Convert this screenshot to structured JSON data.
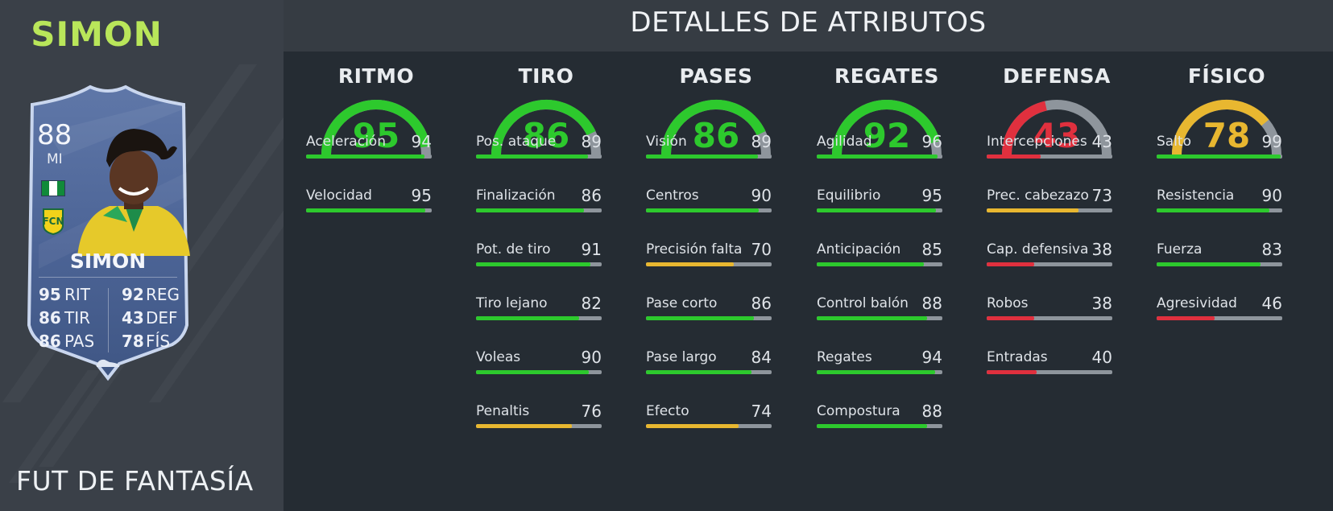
{
  "player": {
    "name_top": "SIMON",
    "promo": "FUT DE FANTASÍA",
    "rating": "88",
    "position": "MI",
    "card_name": "SIMON",
    "card_stats_left": [
      {
        "value": "95",
        "label": "RIT"
      },
      {
        "value": "86",
        "label": "TIR"
      },
      {
        "value": "86",
        "label": "PAS"
      }
    ],
    "card_stats_right": [
      {
        "value": "92",
        "label": "REG"
      },
      {
        "value": "43",
        "label": "DEF"
      },
      {
        "value": "78",
        "label": "FÍS"
      }
    ],
    "flag_icon": "nigeria-flag-icon",
    "club_icon": "club-crest-icon"
  },
  "header": {
    "title": "DETALLES DE ATRIBUTOS"
  },
  "colors": {
    "green": "#2dc92d",
    "red": "#e0303e",
    "yellow": "#e8b730",
    "track": "#8e959c",
    "name_accent": "#b9e65a"
  },
  "categories": [
    {
      "title": "RITMO",
      "value": 95,
      "value_text": "95",
      "attributes": [
        {
          "name": "Aceleración",
          "value": 94,
          "value_text": "94"
        },
        {
          "name": "Velocidad",
          "value": 95,
          "value_text": "95"
        }
      ]
    },
    {
      "title": "TIRO",
      "value": 86,
      "value_text": "86",
      "attributes": [
        {
          "name": "Pos. ataque",
          "value": 89,
          "value_text": "89"
        },
        {
          "name": "Finalización",
          "value": 86,
          "value_text": "86"
        },
        {
          "name": "Pot. de tiro",
          "value": 91,
          "value_text": "91"
        },
        {
          "name": "Tiro lejano",
          "value": 82,
          "value_text": "82"
        },
        {
          "name": "Voleas",
          "value": 90,
          "value_text": "90"
        },
        {
          "name": "Penaltis",
          "value": 76,
          "value_text": "76"
        }
      ]
    },
    {
      "title": "PASES",
      "value": 86,
      "value_text": "86",
      "attributes": [
        {
          "name": "Visión",
          "value": 89,
          "value_text": "89"
        },
        {
          "name": "Centros",
          "value": 90,
          "value_text": "90"
        },
        {
          "name": "Precisión falta",
          "value": 70,
          "value_text": "70"
        },
        {
          "name": "Pase corto",
          "value": 86,
          "value_text": "86"
        },
        {
          "name": "Pase largo",
          "value": 84,
          "value_text": "84"
        },
        {
          "name": "Efecto",
          "value": 74,
          "value_text": "74"
        }
      ]
    },
    {
      "title": "REGATES",
      "value": 92,
      "value_text": "92",
      "attributes": [
        {
          "name": "Agilidad",
          "value": 96,
          "value_text": "96"
        },
        {
          "name": "Equilibrio",
          "value": 95,
          "value_text": "95"
        },
        {
          "name": "Anticipación",
          "value": 85,
          "value_text": "85"
        },
        {
          "name": "Control balón",
          "value": 88,
          "value_text": "88"
        },
        {
          "name": "Regates",
          "value": 94,
          "value_text": "94"
        },
        {
          "name": "Compostura",
          "value": 88,
          "value_text": "88"
        }
      ]
    },
    {
      "title": "DEFENSA",
      "value": 43,
      "value_text": "43",
      "attributes": [
        {
          "name": "Intercepciones",
          "value": 43,
          "value_text": "43"
        },
        {
          "name": "Prec. cabezazo",
          "value": 73,
          "value_text": "73"
        },
        {
          "name": "Cap. defensiva",
          "value": 38,
          "value_text": "38"
        },
        {
          "name": "Robos",
          "value": 38,
          "value_text": "38"
        },
        {
          "name": "Entradas",
          "value": 40,
          "value_text": "40"
        }
      ]
    },
    {
      "title": "FÍSICO",
      "value": 78,
      "value_text": "78",
      "attributes": [
        {
          "name": "Salto",
          "value": 99,
          "value_text": "99"
        },
        {
          "name": "Resistencia",
          "value": 90,
          "value_text": "90"
        },
        {
          "name": "Fuerza",
          "value": 83,
          "value_text": "83"
        },
        {
          "name": "Agresividad",
          "value": 46,
          "value_text": "46"
        }
      ]
    }
  ]
}
